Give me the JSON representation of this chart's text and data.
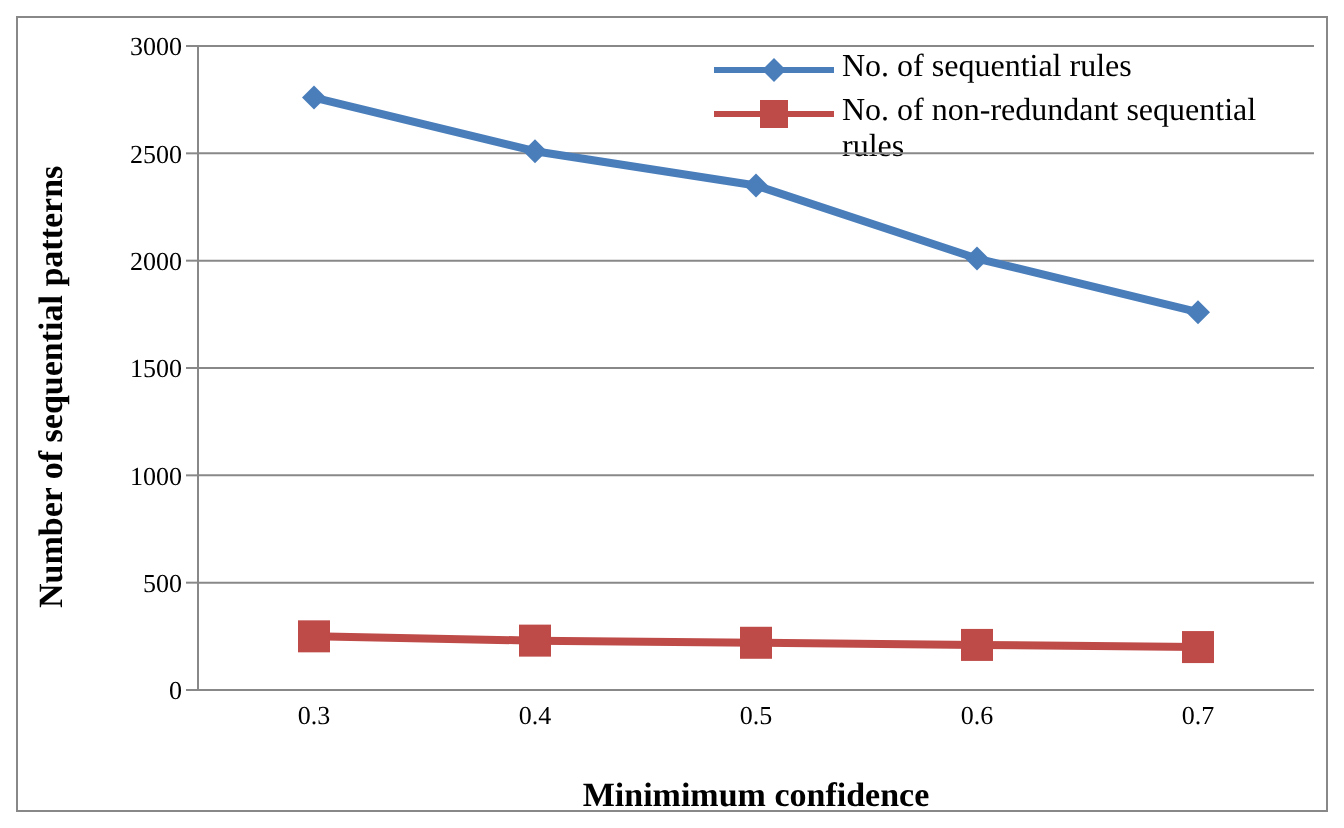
{
  "chart_data": {
    "type": "line",
    "xlabel": "Minimimum confidence",
    "ylabel": "Number of sequential patterns",
    "categories": [
      "0.3",
      "0.4",
      "0.5",
      "0.6",
      "0.7"
    ],
    "series": [
      {
        "name": "No. of sequential rules",
        "color": "#4a7ebb",
        "marker": "diamond",
        "values": [
          2760,
          2510,
          2350,
          2010,
          1760
        ]
      },
      {
        "name": "No. of non-redundant sequential rules",
        "color": "#be4b48",
        "marker": "square",
        "values": [
          250,
          230,
          220,
          210,
          200
        ]
      }
    ],
    "ylim": [
      0,
      3000
    ],
    "yticks": [
      0,
      500,
      1000,
      1500,
      2000,
      2500,
      3000
    ],
    "grid": "y",
    "legend": "top right"
  }
}
